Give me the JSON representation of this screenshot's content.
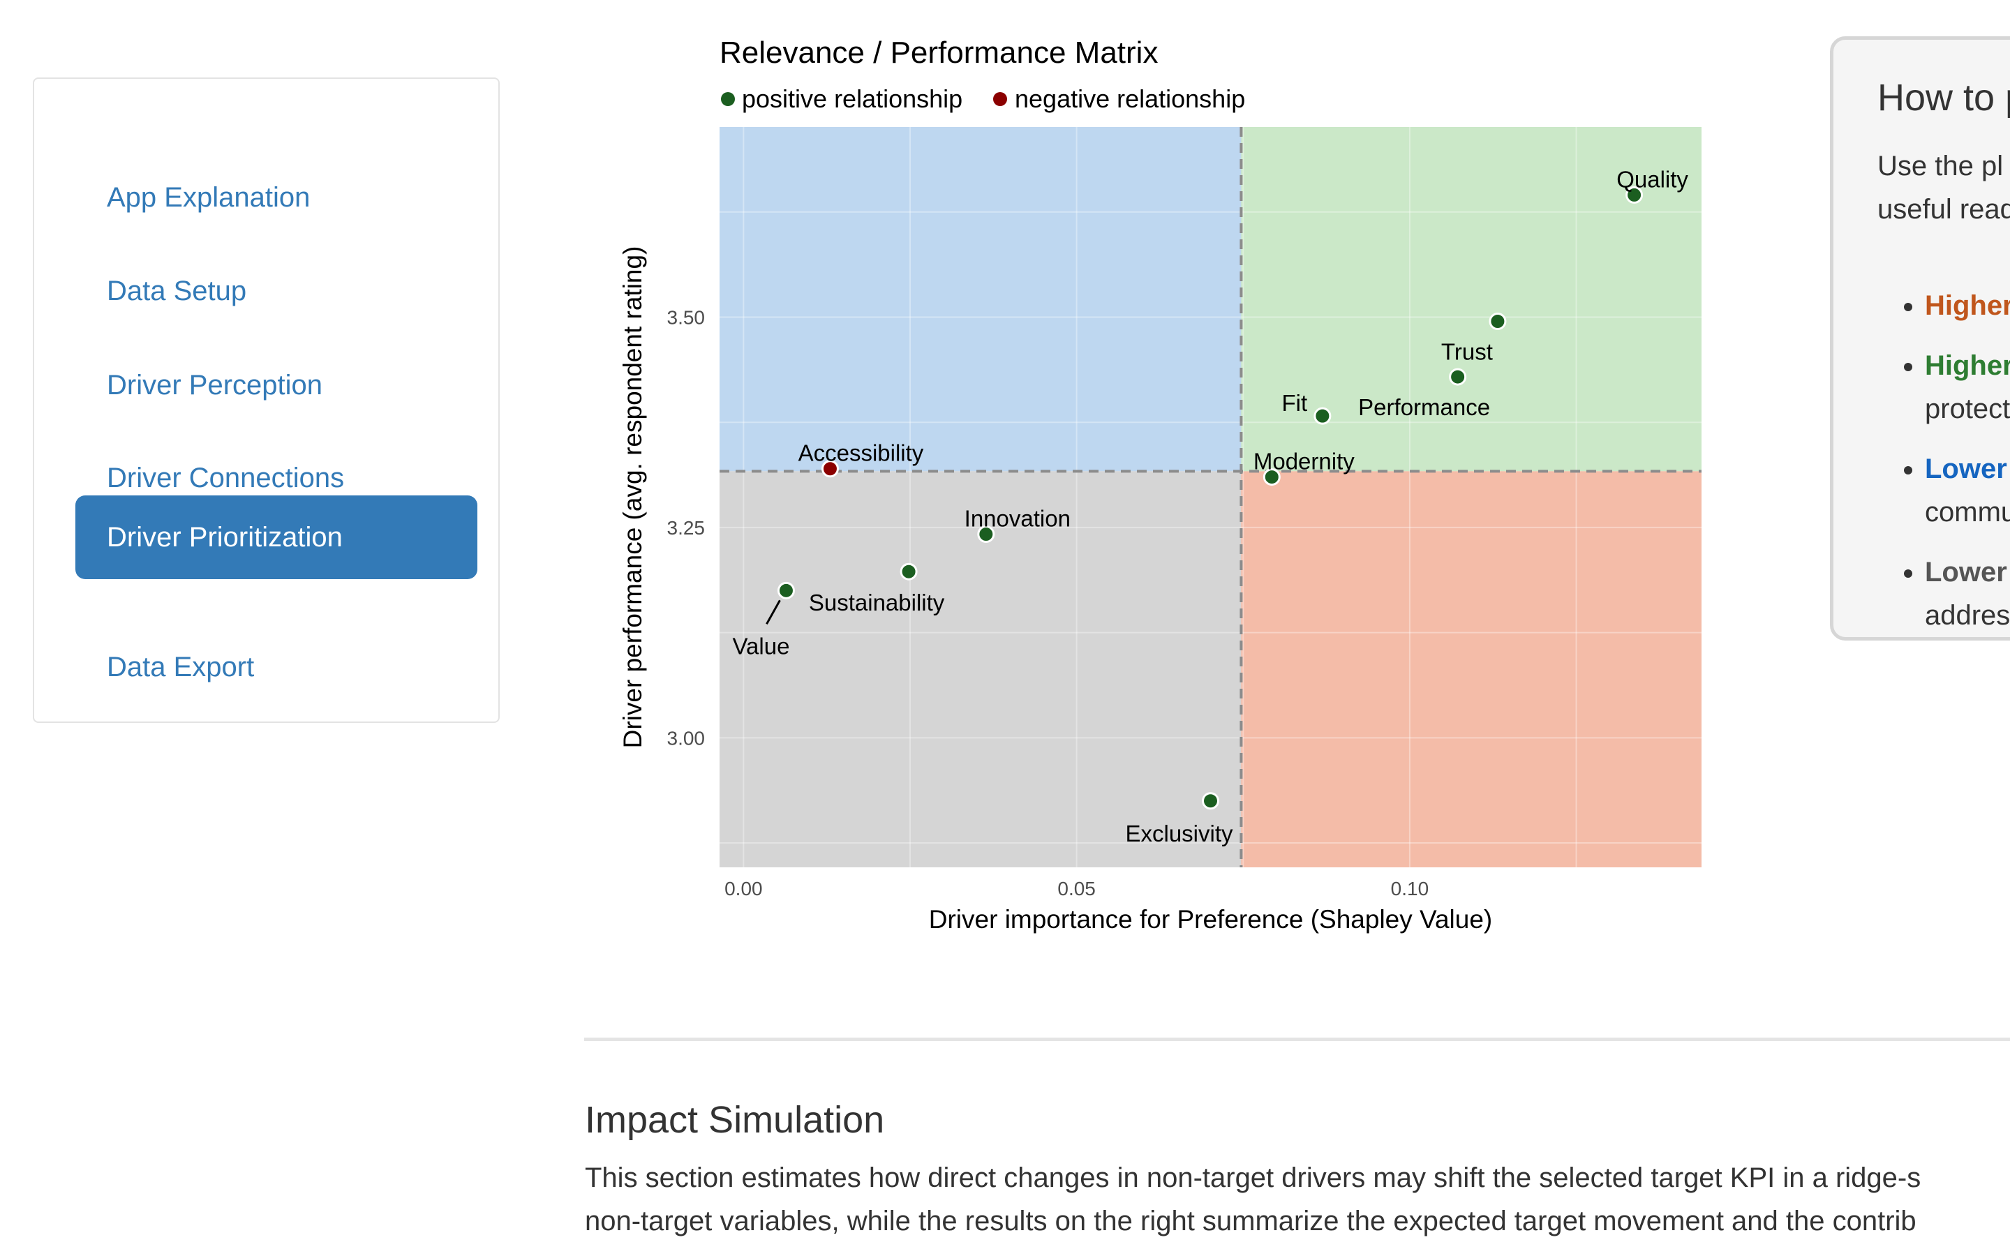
{
  "sidebar": {
    "items": [
      {
        "label": "App Explanation",
        "active": false
      },
      {
        "label": "Data Setup",
        "active": false
      },
      {
        "label": "Driver Perception",
        "active": false
      },
      {
        "label": "Driver Connections",
        "active": false
      },
      {
        "label": "Driver Prioritization",
        "active": true
      },
      {
        "label": "Data Export",
        "active": false
      }
    ]
  },
  "chart_data": {
    "type": "scatter",
    "title": "Relevance / Performance Matrix",
    "legend": [
      {
        "label": "positive relationship",
        "color": "#1b5e20"
      },
      {
        "label": "negative relationship",
        "color": "#8b0000"
      }
    ],
    "legend_placement": "top-left",
    "xlabel": "Driver importance for Preference (Shapley Value)",
    "ylabel": "Driver performance (avg. respondent rating)",
    "xlim": [
      -0.0036,
      0.1438
    ],
    "ylim": [
      2.846,
      3.726
    ],
    "xticks": [
      {
        "value": 0,
        "label": "0.00"
      },
      {
        "value": 0.05,
        "label": "0.05"
      },
      {
        "value": 0.1,
        "label": "0.10"
      }
    ],
    "yticks": [
      {
        "value": 3.0,
        "label": "3.00"
      },
      {
        "value": 3.25,
        "label": "3.25"
      },
      {
        "value": 3.5,
        "label": "3.50"
      }
    ],
    "grid": true,
    "reference_lines": {
      "x": 0.0747,
      "y": 3.3168
    },
    "quadrant_colors": {
      "top_left": "#bed7f0",
      "top_right": "#cbe8c8",
      "bottom_left": "#d5d5d5",
      "bottom_right": "#f4bca8"
    },
    "points": [
      {
        "label": "Quality",
        "x": 0.1337,
        "y": 3.6452,
        "relationship": "positive"
      },
      {
        "label": "Trust",
        "x": 0.1132,
        "y": 3.495,
        "relationship": "positive"
      },
      {
        "label": "Performance",
        "x": 0.1072,
        "y": 3.429,
        "relationship": "positive"
      },
      {
        "label": "Fit",
        "x": 0.0869,
        "y": 3.3825,
        "relationship": "positive"
      },
      {
        "label": "Modernity",
        "x": 0.0793,
        "y": 3.31,
        "relationship": "positive"
      },
      {
        "label": "Accessibility",
        "x": 0.013,
        "y": 3.3198,
        "relationship": "negative"
      },
      {
        "label": "Innovation",
        "x": 0.0364,
        "y": 3.242,
        "relationship": "positive"
      },
      {
        "label": "Sustainability",
        "x": 0.0248,
        "y": 3.1975,
        "relationship": "positive"
      },
      {
        "label": "Value",
        "x": 0.0064,
        "y": 3.175,
        "relationship": "positive"
      },
      {
        "label": "Exclusivity",
        "x": 0.0701,
        "y": 2.925,
        "relationship": "positive"
      }
    ]
  },
  "help_panel": {
    "title": "How to p",
    "intro_lines": [
      "Use the pl",
      "useful read"
    ],
    "bullets": [
      {
        "bold": "Higher",
        "bold_color": "#c0561c",
        "rest": ""
      },
      {
        "bold": "Higher",
        "bold_color": "#2e7d32",
        "rest": "protect"
      },
      {
        "bold": "Lower",
        "bold_color": "#1565c0",
        "rest": "commu"
      },
      {
        "bold": "Lower",
        "bold_color": "#555555",
        "rest": "addres"
      }
    ]
  },
  "simulation": {
    "title": "Impact Simulation",
    "line1": "This section estimates how direct changes in non-target drivers may shift the selected target KPI in a ridge-s",
    "line2": "non-target variables, while the results on the right summarize the expected target movement and the contrib"
  }
}
